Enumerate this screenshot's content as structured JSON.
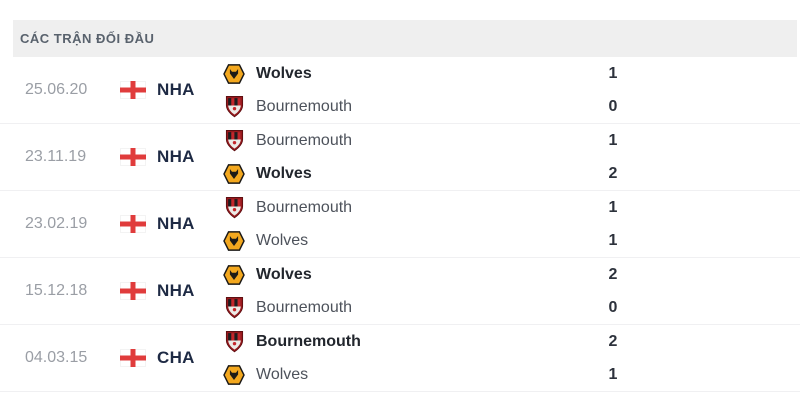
{
  "header": {
    "title": "CÁC TRẬN ĐỐI ĐẦU"
  },
  "icons": {
    "flag": "england-flag-icon",
    "wolves": "wolves-logo-icon",
    "bournemouth": "bournemouth-logo-icon"
  },
  "colors": {
    "header_bg": "#efefef",
    "header_text": "#59626d",
    "date_text": "#9a9ea5",
    "league_text": "#1e2a44",
    "team_text": "#4d525b",
    "winner_text": "#22262d",
    "score_text": "#2d323c",
    "flag_cross_red": "#e03c3c",
    "wolves_gold": "#f3a81f",
    "bournemouth_red": "#9a191d",
    "divider": "#f0f0f2"
  },
  "matches": [
    {
      "date": "25.06.20",
      "league": "NHA",
      "home": {
        "team": "Wolves",
        "logo": "wolves",
        "score": "1",
        "winner": true
      },
      "away": {
        "team": "Bournemouth",
        "logo": "bournemouth",
        "score": "0",
        "winner": false
      }
    },
    {
      "date": "23.11.19",
      "league": "NHA",
      "home": {
        "team": "Bournemouth",
        "logo": "bournemouth",
        "score": "1",
        "winner": false
      },
      "away": {
        "team": "Wolves",
        "logo": "wolves",
        "score": "2",
        "winner": true
      }
    },
    {
      "date": "23.02.19",
      "league": "NHA",
      "home": {
        "team": "Bournemouth",
        "logo": "bournemouth",
        "score": "1",
        "winner": false
      },
      "away": {
        "team": "Wolves",
        "logo": "wolves",
        "score": "1",
        "winner": false
      }
    },
    {
      "date": "15.12.18",
      "league": "NHA",
      "home": {
        "team": "Wolves",
        "logo": "wolves",
        "score": "2",
        "winner": true
      },
      "away": {
        "team": "Bournemouth",
        "logo": "bournemouth",
        "score": "0",
        "winner": false
      }
    },
    {
      "date": "04.03.15",
      "league": "CHA",
      "home": {
        "team": "Bournemouth",
        "logo": "bournemouth",
        "score": "2",
        "winner": true
      },
      "away": {
        "team": "Wolves",
        "logo": "wolves",
        "score": "1",
        "winner": false
      }
    }
  ]
}
